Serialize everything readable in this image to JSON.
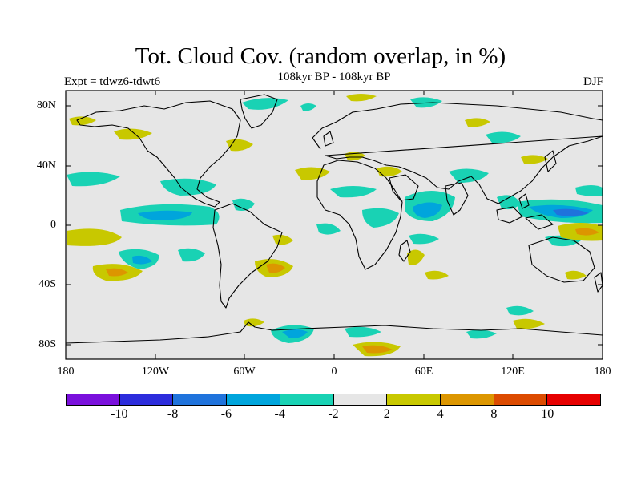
{
  "title": "Tot. Cloud Cov. (random overlap, in %)",
  "subtitle": "108kyr BP - 108kyr BP",
  "experiment": "Expt = tdwz6-tdwt6",
  "season": "DJF",
  "lat_labels": [
    "80N",
    "40N",
    "0",
    "40S",
    "80S"
  ],
  "lon_labels": [
    "180",
    "120W",
    "60W",
    "0",
    "60E",
    "120E",
    "180"
  ],
  "colorbar": {
    "colors": [
      "#7a10dc",
      "#2c2cdc",
      "#1f73dc",
      "#00a5dc",
      "#19d2b4",
      "#e6e6e6",
      "#c8c800",
      "#dc9600",
      "#dc4b00",
      "#e60000"
    ],
    "labels": [
      "-10",
      "-8",
      "-6",
      "-4",
      "-2",
      "2",
      "4",
      "8",
      "10"
    ]
  }
}
